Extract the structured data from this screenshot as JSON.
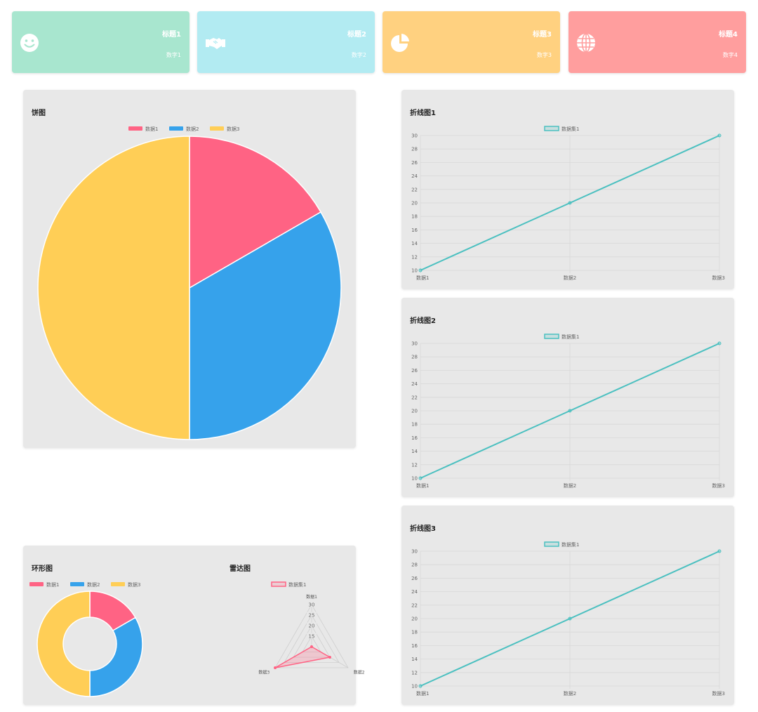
{
  "colors": {
    "red": "#ff6384",
    "blue": "#36a2eb",
    "yellow": "#ffce56",
    "teal": "#4bc0c0"
  },
  "cards": [
    {
      "title": "标题1",
      "value": "数字1",
      "icon": "smile-icon",
      "color": "#a8e6cf"
    },
    {
      "title": "标题2",
      "value": "数字2",
      "icon": "handshake-icon",
      "color": "#b2ebf2"
    },
    {
      "title": "标题3",
      "value": "数字3",
      "icon": "pie-chart-icon",
      "color": "#ffd180"
    },
    {
      "title": "标题4",
      "value": "数字4",
      "icon": "globe-icon",
      "color": "#ff9e9e"
    }
  ],
  "chart_data": [
    {
      "id": "pie",
      "type": "pie",
      "title": "饼图",
      "categories": [
        "数据1",
        "数据2",
        "数据3"
      ],
      "values": [
        10,
        20,
        30
      ]
    },
    {
      "id": "line1",
      "type": "line",
      "title": "折线图1",
      "categories": [
        "数据1",
        "数据2",
        "数据3"
      ],
      "series": [
        {
          "name": "数据集1",
          "values": [
            10,
            20,
            30
          ]
        }
      ],
      "ylim": [
        10,
        30
      ],
      "yticks": [
        10,
        12,
        14,
        16,
        18,
        20,
        22,
        24,
        26,
        28,
        30
      ]
    },
    {
      "id": "line2",
      "type": "line",
      "title": "折线图2",
      "categories": [
        "数据1",
        "数据2",
        "数据3"
      ],
      "series": [
        {
          "name": "数据集1",
          "values": [
            10,
            20,
            30
          ]
        }
      ],
      "ylim": [
        10,
        30
      ],
      "yticks": [
        10,
        12,
        14,
        16,
        18,
        20,
        22,
        24,
        26,
        28,
        30
      ]
    },
    {
      "id": "line3",
      "type": "line",
      "title": "折线图3",
      "categories": [
        "数据1",
        "数据2",
        "数据3"
      ],
      "series": [
        {
          "name": "数据集1",
          "values": [
            10,
            20,
            30
          ]
        }
      ],
      "ylim": [
        10,
        30
      ],
      "yticks": [
        10,
        12,
        14,
        16,
        18,
        20,
        22,
        24,
        26,
        28,
        30
      ]
    },
    {
      "id": "doughnut",
      "type": "doughnut",
      "title": "环形图",
      "categories": [
        "数据1",
        "数据2",
        "数据3"
      ],
      "values": [
        10,
        20,
        30
      ]
    },
    {
      "id": "radar",
      "type": "radar",
      "title": "雷达图",
      "categories": [
        "数据1",
        "数据2",
        "数据3"
      ],
      "series": [
        {
          "name": "数据集1",
          "values": [
            10,
            20,
            30
          ]
        }
      ],
      "rticks": [
        15,
        20,
        25,
        30
      ],
      "rmin": 10,
      "rmax": 30
    }
  ]
}
